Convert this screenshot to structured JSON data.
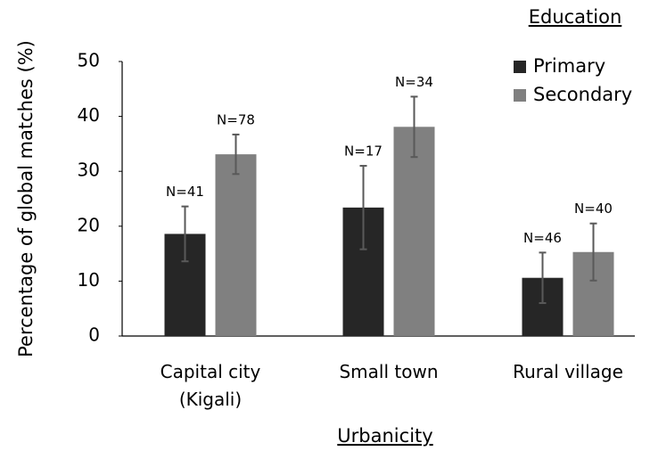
{
  "chart_data": {
    "type": "bar",
    "y_label": "Percentage of global matches (%)",
    "x_label": "Urbanicity",
    "legend_title": "Education",
    "legend_position": "top-right",
    "categories": [
      [
        "Capital city",
        "(Kigali)"
      ],
      [
        "Small town"
      ],
      [
        "Rural village"
      ]
    ],
    "series": [
      {
        "name": "Primary",
        "color": "#262626",
        "values": [
          18.6,
          23.4,
          10.6
        ],
        "errors": [
          5.0,
          7.6,
          4.6
        ],
        "annotations": [
          "N=41",
          "N=17",
          "N=46"
        ]
      },
      {
        "name": "Secondary",
        "color": "#808080",
        "values": [
          33.1,
          38.1,
          15.3
        ],
        "errors": [
          3.6,
          5.5,
          5.2
        ],
        "annotations": [
          "N=78",
          "N=34",
          "N=40"
        ]
      }
    ],
    "error_color": "#595959",
    "ylim": [
      0,
      50
    ],
    "yticks": [
      0,
      10,
      20,
      30,
      40,
      50
    ],
    "grid": false
  }
}
